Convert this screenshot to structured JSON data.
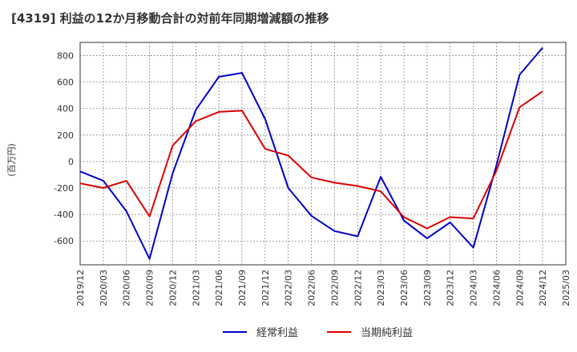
{
  "chart_data": {
    "type": "line",
    "title": "[4319]  利益の12か月移動合計の対前年同期増減額の推移",
    "xlabel": "",
    "ylabel": "(百万円)",
    "ylim": [
      -780,
      900
    ],
    "yticks": [
      800,
      600,
      400,
      200,
      0,
      -200,
      -400,
      -600
    ],
    "categories": [
      "2019/12",
      "2020/03",
      "2020/06",
      "2020/09",
      "2020/12",
      "2021/03",
      "2021/06",
      "2021/09",
      "2021/12",
      "2022/03",
      "2022/06",
      "2022/09",
      "2022/12",
      "2023/03",
      "2023/06",
      "2023/09",
      "2023/12",
      "2024/03",
      "2024/06",
      "2024/09",
      "2024/12",
      "2025/03"
    ],
    "grid": true,
    "legend": "bottom",
    "series": [
      {
        "name": "経常利益",
        "color": "#0000cc",
        "values": [
          -75,
          -145,
          -375,
          -735,
          -90,
          390,
          640,
          670,
          320,
          -200,
          -410,
          -525,
          -565,
          -115,
          -445,
          -580,
          -460,
          -650,
          -30,
          655,
          860,
          null
        ]
      },
      {
        "name": "当期純利益",
        "color": "#dd0000",
        "values": [
          -165,
          -200,
          -145,
          -415,
          120,
          305,
          375,
          385,
          95,
          45,
          -120,
          -160,
          -185,
          -225,
          -420,
          -505,
          -420,
          -430,
          -70,
          410,
          530,
          null
        ]
      }
    ]
  }
}
